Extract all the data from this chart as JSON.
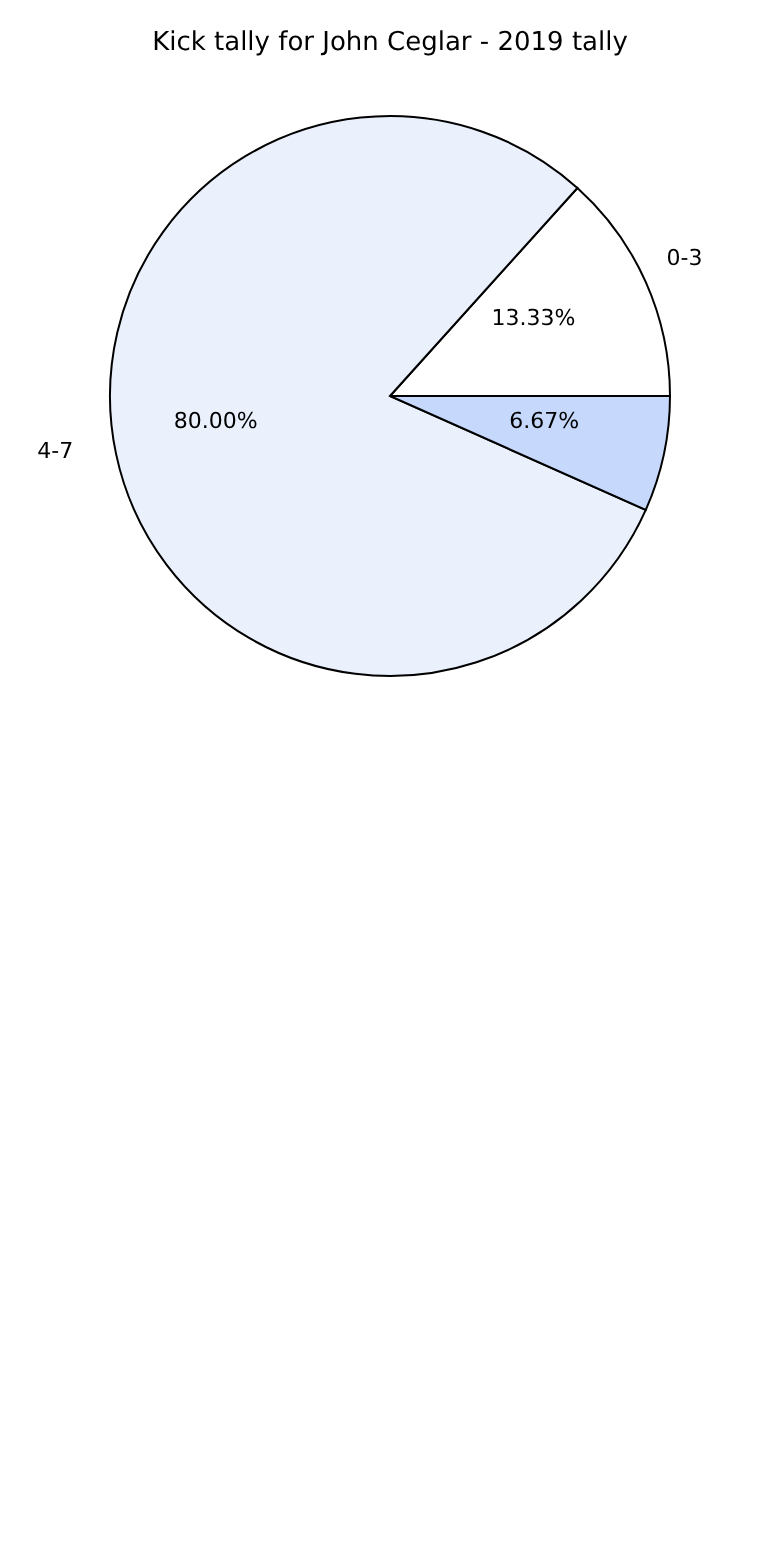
{
  "chart_data": {
    "type": "pie",
    "title": "Kick tally for John Ceglar - 2019 tally",
    "categories": [
      "0-3",
      "4-7",
      null
    ],
    "values": [
      13.33,
      80.0,
      6.67
    ],
    "value_labels": [
      "13.33%",
      "80.00%",
      "6.67%"
    ],
    "colors": [
      "#ffffff",
      "#eaf1fd",
      "#c6d9fd"
    ]
  }
}
